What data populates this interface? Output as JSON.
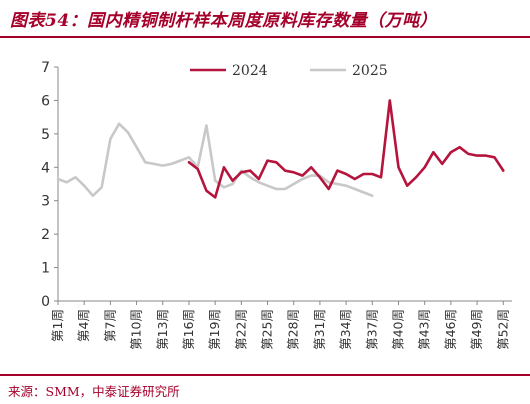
{
  "title": "图表54：国内精铜制杆样本周度原料库存数量（万吨）",
  "source": "来源：SMM，中泰证券研究所",
  "colors": {
    "brand": "#a5002a",
    "series_2024": "#b5143c",
    "series_2025": "#c8c8c8",
    "axis": "#888888",
    "text": "#333333"
  },
  "chart_data": {
    "type": "line",
    "title": "国内精铜制杆样本周度原料库存数量（万吨）",
    "xlabel": "",
    "ylabel": "",
    "ylim": [
      0,
      7
    ],
    "yticks": [
      0,
      1,
      2,
      3,
      4,
      5,
      6,
      7
    ],
    "grid": false,
    "legend_position": "top",
    "x_range": [
      1,
      53
    ],
    "x_ticks": [
      1,
      4,
      7,
      10,
      13,
      16,
      19,
      22,
      25,
      28,
      31,
      34,
      37,
      40,
      43,
      46,
      49,
      52
    ],
    "x_tick_labels": [
      "第1周",
      "第4周",
      "第7周",
      "第10周",
      "第13周",
      "第16周",
      "第19周",
      "第22周",
      "第25周",
      "第28周",
      "第31周",
      "第34周",
      "第37周",
      "第40周",
      "第43周",
      "第46周",
      "第49周",
      "第52周"
    ],
    "series": [
      {
        "name": "2024",
        "color": "#b5143c",
        "points": [
          [
            16,
            4.15
          ],
          [
            17,
            3.95
          ],
          [
            18,
            3.3
          ],
          [
            19,
            3.1
          ],
          [
            20,
            4.0
          ],
          [
            21,
            3.6
          ],
          [
            22,
            3.85
          ],
          [
            23,
            3.9
          ],
          [
            24,
            3.65
          ],
          [
            25,
            4.2
          ],
          [
            26,
            4.15
          ],
          [
            27,
            3.9
          ],
          [
            28,
            3.85
          ],
          [
            29,
            3.75
          ],
          [
            30,
            4.0
          ],
          [
            31,
            3.7
          ],
          [
            32,
            3.35
          ],
          [
            33,
            3.9
          ],
          [
            34,
            3.8
          ],
          [
            35,
            3.65
          ],
          [
            36,
            3.8
          ],
          [
            37,
            3.8
          ],
          [
            38,
            3.7
          ],
          [
            39,
            6.0
          ],
          [
            40,
            4.0
          ],
          [
            41,
            3.45
          ],
          [
            42,
            3.7
          ],
          [
            43,
            4.0
          ],
          [
            44,
            4.45
          ],
          [
            45,
            4.1
          ],
          [
            46,
            4.45
          ],
          [
            47,
            4.6
          ],
          [
            48,
            4.4
          ],
          [
            49,
            4.35
          ],
          [
            50,
            4.35
          ],
          [
            51,
            4.3
          ],
          [
            52,
            3.9
          ]
        ]
      },
      {
        "name": "2025",
        "color": "#c8c8c8",
        "points": [
          [
            1,
            3.65
          ],
          [
            2,
            3.55
          ],
          [
            3,
            3.7
          ],
          [
            4,
            3.45
          ],
          [
            5,
            3.15
          ],
          [
            6,
            3.4
          ],
          [
            7,
            4.85
          ],
          [
            8,
            5.3
          ],
          [
            9,
            5.05
          ],
          [
            10,
            4.6
          ],
          [
            11,
            4.15
          ],
          [
            12,
            4.1
          ],
          [
            13,
            4.05
          ],
          [
            14,
            4.1
          ],
          [
            15,
            4.2
          ],
          [
            16,
            4.3
          ],
          [
            17,
            4.0
          ],
          [
            18,
            5.25
          ],
          [
            19,
            3.6
          ],
          [
            20,
            3.4
          ],
          [
            21,
            3.5
          ],
          [
            22,
            3.9
          ],
          [
            23,
            3.7
          ],
          [
            24,
            3.55
          ],
          [
            25,
            3.45
          ],
          [
            26,
            3.35
          ],
          [
            27,
            3.35
          ],
          [
            28,
            3.5
          ],
          [
            29,
            3.65
          ],
          [
            30,
            3.75
          ],
          [
            31,
            3.75
          ],
          [
            32,
            3.55
          ],
          [
            33,
            3.5
          ],
          [
            34,
            3.45
          ],
          [
            35,
            3.35
          ],
          [
            36,
            3.25
          ],
          [
            37,
            3.15
          ]
        ]
      }
    ]
  }
}
